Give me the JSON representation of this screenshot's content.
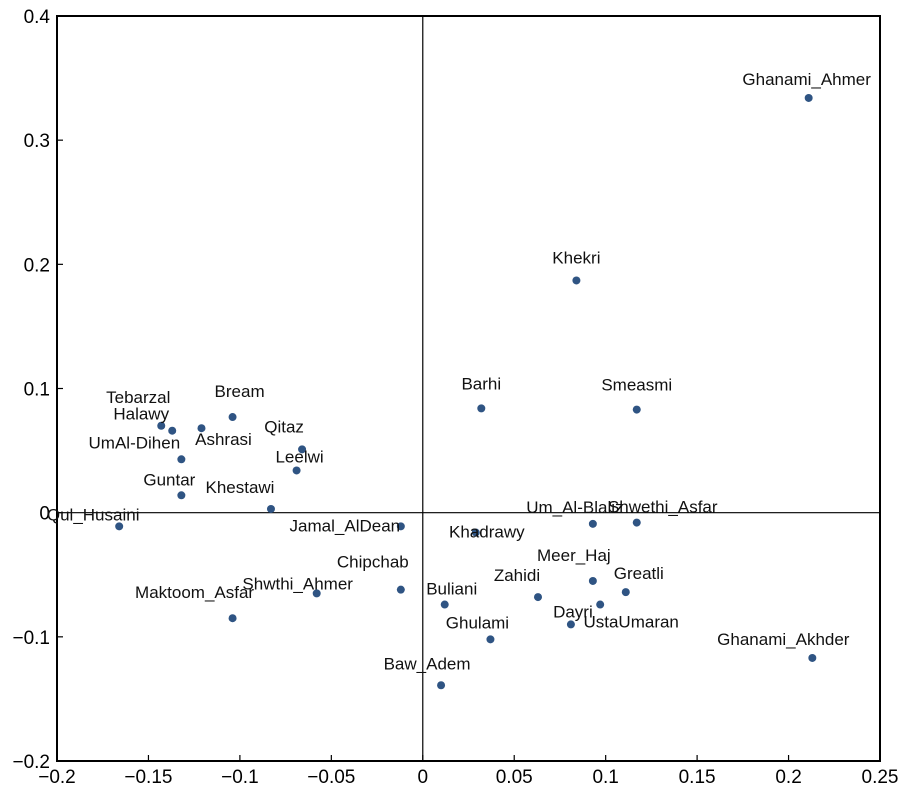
{
  "chart_data": {
    "type": "scatter",
    "title": "",
    "xlabel": "",
    "ylabel": "",
    "xlim": [
      -0.2,
      0.25
    ],
    "ylim": [
      -0.2,
      0.4
    ],
    "x_ticks": [
      "−0.2",
      "−0.15",
      "−0.1",
      "−0.05",
      "0",
      "0.05",
      "0.1",
      "0.15",
      "0.2",
      "0.25"
    ],
    "y_ticks": [
      "−0.2",
      "−0.1",
      "0",
      "0.1",
      "0.2",
      "0.3",
      "0.4"
    ],
    "grid": false,
    "reference_lines": {
      "x": 0,
      "y": 0
    },
    "point_color": "#2f5483",
    "points": [
      {
        "label": "Ghanami_Ahmer",
        "x": 0.211,
        "y": 0.334
      },
      {
        "label": "Khekri",
        "x": 0.084,
        "y": 0.187
      },
      {
        "label": "Barhi",
        "x": 0.032,
        "y": 0.084
      },
      {
        "label": "Smeasmi",
        "x": 0.117,
        "y": 0.083
      },
      {
        "label": "Tebarzal",
        "x": -0.143,
        "y": 0.07
      },
      {
        "label": "Halawy",
        "x": -0.137,
        "y": 0.066
      },
      {
        "label": "Bream",
        "x": -0.104,
        "y": 0.077
      },
      {
        "label": "Ashrasi",
        "x": -0.121,
        "y": 0.068
      },
      {
        "label": "Qitaz",
        "x": -0.066,
        "y": 0.051
      },
      {
        "label": "UmAl-Dihen",
        "x": -0.132,
        "y": 0.043
      },
      {
        "label": "Leelwi",
        "x": -0.069,
        "y": 0.034
      },
      {
        "label": "Guntar",
        "x": -0.132,
        "y": 0.014
      },
      {
        "label": "Khestawi",
        "x": -0.083,
        "y": 0.003
      },
      {
        "label": "Qul_Husaini",
        "x": -0.166,
        "y": -0.011
      },
      {
        "label": "Jamal_AlDean",
        "x": -0.012,
        "y": -0.011
      },
      {
        "label": "Khadrawy",
        "x": 0.029,
        "y": -0.016
      },
      {
        "label": "Um_Al-Blaliz",
        "x": 0.093,
        "y": -0.009
      },
      {
        "label": "Shwethi_Asfar",
        "x": 0.117,
        "y": -0.008
      },
      {
        "label": "Chipchab",
        "x": -0.012,
        "y": -0.062
      },
      {
        "label": "Shwthi_Ahmer",
        "x": -0.058,
        "y": -0.065
      },
      {
        "label": "Meer_Haj",
        "x": 0.093,
        "y": -0.055
      },
      {
        "label": "Greatli",
        "x": 0.111,
        "y": -0.064
      },
      {
        "label": "Zahidi",
        "x": 0.063,
        "y": -0.068
      },
      {
        "label": "Buliani",
        "x": 0.012,
        "y": -0.074
      },
      {
        "label": "UstaUmaran",
        "x": 0.097,
        "y": -0.074
      },
      {
        "label": "Maktoom_Asfar",
        "x": -0.104,
        "y": -0.085
      },
      {
        "label": "Dayri",
        "x": 0.081,
        "y": -0.09
      },
      {
        "label": "Ghulami",
        "x": 0.037,
        "y": -0.102
      },
      {
        "label": "Ghanami_Akhder",
        "x": 0.213,
        "y": -0.117
      },
      {
        "label": "Baw_Adem",
        "x": 0.01,
        "y": -0.139
      }
    ]
  }
}
